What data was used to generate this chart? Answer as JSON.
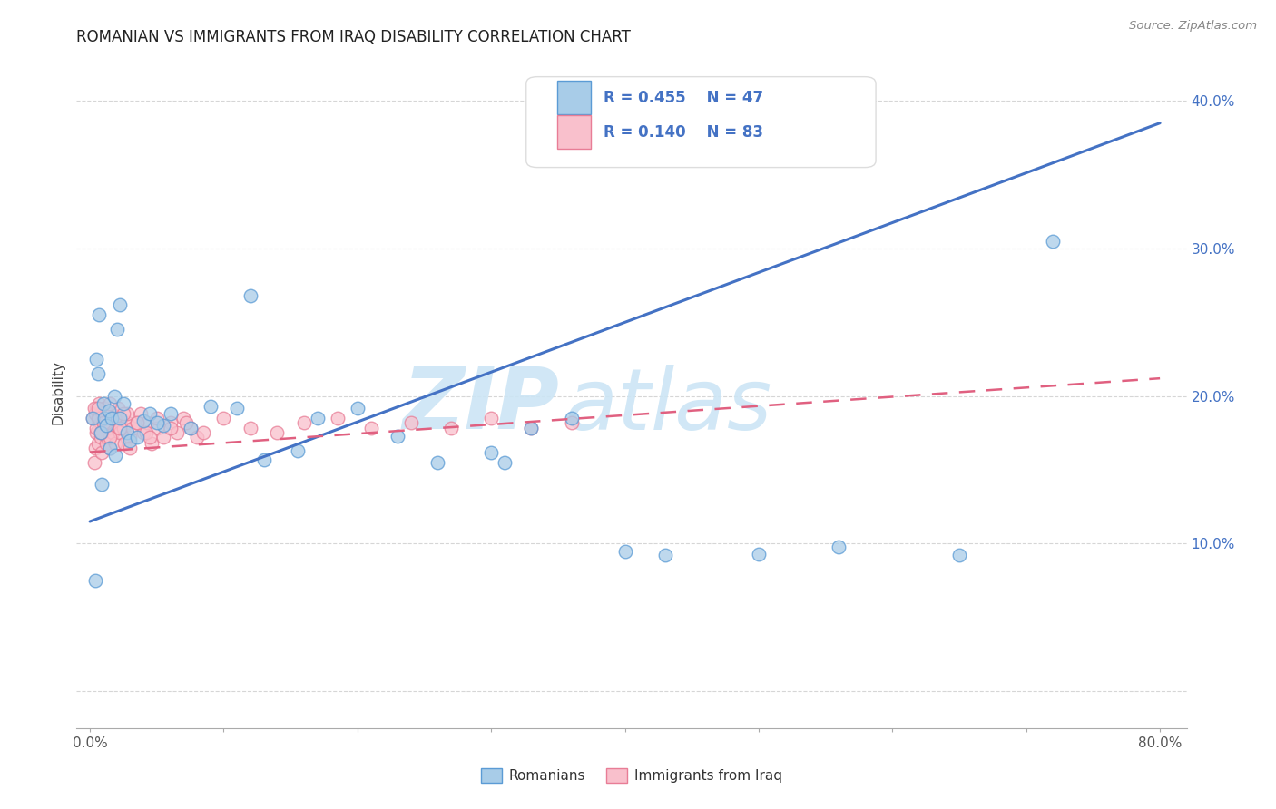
{
  "title": "ROMANIAN VS IMMIGRANTS FROM IRAQ DISABILITY CORRELATION CHART",
  "source": "Source: ZipAtlas.com",
  "ylabel": "Disability",
  "watermark_zip": "ZIP",
  "watermark_atlas": "atlas",
  "xlim": [
    -0.01,
    0.82
  ],
  "ylim": [
    -0.025,
    0.43
  ],
  "xtick_positions": [
    0.0,
    0.1,
    0.2,
    0.3,
    0.4,
    0.5,
    0.6,
    0.7,
    0.8
  ],
  "xticklabels": [
    "0.0%",
    "",
    "",
    "",
    "",
    "",
    "",
    "",
    "80.0%"
  ],
  "ytick_positions": [
    0.0,
    0.1,
    0.2,
    0.3,
    0.4
  ],
  "yticklabels_right": [
    "",
    "10.0%",
    "20.0%",
    "30.0%",
    "40.0%"
  ],
  "legend_r1": "R = 0.455",
  "legend_n1": "N = 47",
  "legend_r2": "R = 0.140",
  "legend_n2": "N = 83",
  "color_romanian_fill": "#a8cce8",
  "color_romanian_edge": "#5b9bd5",
  "color_iraq_fill": "#f9c0cc",
  "color_iraq_edge": "#e87d96",
  "color_line_romanian": "#4472c4",
  "color_line_iraq": "#e06080",
  "color_text_blue": "#4472c4",
  "color_grid": "#cccccc",
  "background_color": "#ffffff",
  "rom_line_x": [
    0.0,
    0.8
  ],
  "rom_line_y": [
    0.115,
    0.385
  ],
  "iraq_line_x": [
    0.0,
    0.8
  ],
  "iraq_line_y": [
    0.162,
    0.212
  ],
  "romanian_x": [
    0.002,
    0.004,
    0.005,
    0.006,
    0.007,
    0.008,
    0.009,
    0.01,
    0.011,
    0.012,
    0.014,
    0.015,
    0.016,
    0.018,
    0.019,
    0.02,
    0.022,
    0.025,
    0.028,
    0.03,
    0.035,
    0.04,
    0.045,
    0.055,
    0.06,
    0.075,
    0.09,
    0.11,
    0.13,
    0.155,
    0.17,
    0.2,
    0.23,
    0.26,
    0.3,
    0.33,
    0.36,
    0.4,
    0.43,
    0.5,
    0.56,
    0.65,
    0.72,
    0.022,
    0.05,
    0.12,
    0.31
  ],
  "romanian_y": [
    0.185,
    0.075,
    0.225,
    0.215,
    0.255,
    0.175,
    0.14,
    0.195,
    0.185,
    0.18,
    0.19,
    0.165,
    0.185,
    0.2,
    0.16,
    0.245,
    0.185,
    0.195,
    0.175,
    0.17,
    0.172,
    0.183,
    0.188,
    0.18,
    0.188,
    0.178,
    0.193,
    0.192,
    0.157,
    0.163,
    0.185,
    0.192,
    0.173,
    0.155,
    0.162,
    0.178,
    0.185,
    0.095,
    0.092,
    0.093,
    0.098,
    0.092,
    0.305,
    0.262,
    0.182,
    0.268,
    0.155
  ],
  "iraq_x": [
    0.002,
    0.003,
    0.004,
    0.004,
    0.005,
    0.005,
    0.006,
    0.006,
    0.007,
    0.007,
    0.008,
    0.008,
    0.009,
    0.009,
    0.01,
    0.01,
    0.011,
    0.011,
    0.012,
    0.012,
    0.013,
    0.013,
    0.014,
    0.015,
    0.015,
    0.016,
    0.017,
    0.018,
    0.019,
    0.02,
    0.021,
    0.022,
    0.023,
    0.025,
    0.026,
    0.028,
    0.03,
    0.032,
    0.035,
    0.038,
    0.04,
    0.043,
    0.046,
    0.05,
    0.055,
    0.06,
    0.065,
    0.07,
    0.075,
    0.08,
    0.003,
    0.005,
    0.007,
    0.009,
    0.012,
    0.015,
    0.018,
    0.022,
    0.028,
    0.035,
    0.042,
    0.05,
    0.06,
    0.072,
    0.085,
    0.1,
    0.12,
    0.14,
    0.16,
    0.185,
    0.21,
    0.24,
    0.27,
    0.3,
    0.33,
    0.36,
    0.03,
    0.045,
    0.015,
    0.025,
    0.01,
    0.008,
    0.006
  ],
  "iraq_y": [
    0.185,
    0.155,
    0.188,
    0.165,
    0.192,
    0.175,
    0.185,
    0.168,
    0.178,
    0.195,
    0.182,
    0.172,
    0.189,
    0.162,
    0.185,
    0.175,
    0.18,
    0.192,
    0.168,
    0.185,
    0.188,
    0.172,
    0.178,
    0.182,
    0.165,
    0.188,
    0.175,
    0.185,
    0.168,
    0.178,
    0.192,
    0.175,
    0.185,
    0.178,
    0.168,
    0.182,
    0.172,
    0.178,
    0.182,
    0.188,
    0.175,
    0.182,
    0.168,
    0.178,
    0.172,
    0.182,
    0.175,
    0.185,
    0.178,
    0.172,
    0.192,
    0.178,
    0.185,
    0.175,
    0.182,
    0.172,
    0.185,
    0.178,
    0.188,
    0.182,
    0.175,
    0.185,
    0.178,
    0.182,
    0.175,
    0.185,
    0.178,
    0.175,
    0.182,
    0.185,
    0.178,
    0.182,
    0.178,
    0.185,
    0.178,
    0.182,
    0.165,
    0.172,
    0.195,
    0.188,
    0.182,
    0.175,
    0.192
  ]
}
